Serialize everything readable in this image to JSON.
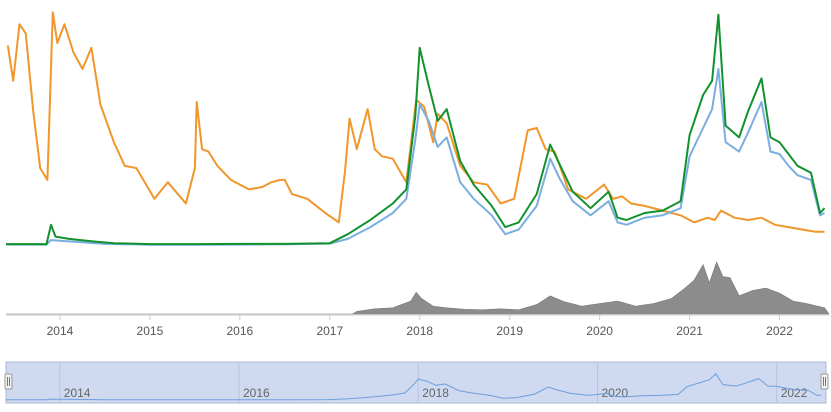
{
  "chart_data": {
    "type": "line",
    "title": "",
    "xlabel": "",
    "ylabel": "",
    "x_range": [
      2013.4,
      2022.55
    ],
    "x_ticks": [
      2014,
      2015,
      2016,
      2017,
      2018,
      2019,
      2020,
      2021,
      2022
    ],
    "x_tick_labels": [
      "2014",
      "2015",
      "2016",
      "2017",
      "2018",
      "2019",
      "2020",
      "2021",
      "2022"
    ],
    "y_range": [
      0,
      100
    ],
    "y_axis_visible": false,
    "grid": false,
    "legend": "none",
    "colors": {
      "orange": "#f0962a",
      "green": "#12922e",
      "blue": "#7aaee0",
      "volume": "#8c8c8c",
      "navigator_fill": "#cfd9f0",
      "navigator_border": "#a9b9d6",
      "navigator_line": "#6f9fdc",
      "axis": "#cccccc",
      "tick_text": "#555555",
      "nav_text": "#666666"
    },
    "series": [
      {
        "color_key": "orange",
        "points": [
          [
            2013.42,
            85
          ],
          [
            2013.48,
            70
          ],
          [
            2013.55,
            94
          ],
          [
            2013.62,
            90
          ],
          [
            2013.7,
            58
          ],
          [
            2013.78,
            33
          ],
          [
            2013.86,
            28
          ],
          [
            2013.92,
            99
          ],
          [
            2013.97,
            86
          ],
          [
            2014.05,
            94
          ],
          [
            2014.15,
            82
          ],
          [
            2014.25,
            75
          ],
          [
            2014.35,
            84
          ],
          [
            2014.45,
            60
          ],
          [
            2014.6,
            44
          ],
          [
            2014.72,
            34
          ],
          [
            2014.85,
            33
          ],
          [
            2015.05,
            20
          ],
          [
            2015.2,
            27
          ],
          [
            2015.4,
            18
          ],
          [
            2015.5,
            33
          ],
          [
            2015.52,
            61
          ],
          [
            2015.58,
            41
          ],
          [
            2015.65,
            40
          ],
          [
            2015.75,
            34
          ],
          [
            2015.9,
            28
          ],
          [
            2016.1,
            24
          ],
          [
            2016.25,
            25
          ],
          [
            2016.35,
            27
          ],
          [
            2016.45,
            28
          ],
          [
            2016.5,
            28
          ],
          [
            2016.58,
            22
          ],
          [
            2016.75,
            20
          ],
          [
            2016.95,
            14
          ],
          [
            2017.1,
            10
          ],
          [
            2017.17,
            32
          ],
          [
            2017.22,
            54
          ],
          [
            2017.3,
            41
          ],
          [
            2017.42,
            58
          ],
          [
            2017.5,
            41
          ],
          [
            2017.58,
            38
          ],
          [
            2017.7,
            37
          ],
          [
            2017.85,
            27
          ],
          [
            2017.96,
            62
          ],
          [
            2018.05,
            59
          ],
          [
            2018.15,
            44
          ],
          [
            2018.2,
            56
          ],
          [
            2018.3,
            52
          ],
          [
            2018.45,
            34
          ],
          [
            2018.6,
            27
          ],
          [
            2018.75,
            26
          ],
          [
            2018.9,
            18
          ],
          [
            2019.05,
            20
          ],
          [
            2019.2,
            49
          ],
          [
            2019.3,
            50
          ],
          [
            2019.4,
            41
          ],
          [
            2019.5,
            40
          ],
          [
            2019.65,
            24
          ],
          [
            2019.85,
            20
          ],
          [
            2020.05,
            26
          ],
          [
            2020.15,
            20
          ],
          [
            2020.25,
            21
          ],
          [
            2020.35,
            18
          ],
          [
            2020.5,
            17
          ],
          [
            2020.7,
            15
          ],
          [
            2020.9,
            13
          ],
          [
            2021.05,
            10
          ],
          [
            2021.2,
            12
          ],
          [
            2021.28,
            11
          ],
          [
            2021.35,
            15
          ],
          [
            2021.5,
            12
          ],
          [
            2021.65,
            11
          ],
          [
            2021.8,
            12
          ],
          [
            2021.95,
            9
          ],
          [
            2022.1,
            8
          ],
          [
            2022.25,
            7
          ],
          [
            2022.4,
            6
          ],
          [
            2022.5,
            6
          ]
        ]
      },
      {
        "color_key": "blue",
        "points": [
          [
            2013.4,
            0.6
          ],
          [
            2013.85,
            0.6
          ],
          [
            2013.9,
            2.5
          ],
          [
            2014.0,
            2.2
          ],
          [
            2014.2,
            1.7
          ],
          [
            2014.5,
            0.9
          ],
          [
            2014.8,
            0.7
          ],
          [
            2015.0,
            0.5
          ],
          [
            2015.5,
            0.5
          ],
          [
            2016.0,
            0.6
          ],
          [
            2016.5,
            0.7
          ],
          [
            2017.0,
            1.0
          ],
          [
            2017.2,
            3
          ],
          [
            2017.45,
            8
          ],
          [
            2017.7,
            14
          ],
          [
            2017.85,
            20
          ],
          [
            2017.95,
            45
          ],
          [
            2018.0,
            60
          ],
          [
            2018.1,
            53
          ],
          [
            2018.2,
            42
          ],
          [
            2018.3,
            46
          ],
          [
            2018.45,
            27
          ],
          [
            2018.6,
            20
          ],
          [
            2018.8,
            13
          ],
          [
            2018.95,
            5
          ],
          [
            2019.1,
            7
          ],
          [
            2019.3,
            17
          ],
          [
            2019.45,
            37
          ],
          [
            2019.55,
            29
          ],
          [
            2019.7,
            19
          ],
          [
            2019.9,
            13
          ],
          [
            2020.1,
            19
          ],
          [
            2020.2,
            10
          ],
          [
            2020.3,
            9
          ],
          [
            2020.5,
            12
          ],
          [
            2020.7,
            13
          ],
          [
            2020.9,
            16
          ],
          [
            2021.0,
            38
          ],
          [
            2021.15,
            50
          ],
          [
            2021.25,
            58
          ],
          [
            2021.32,
            75
          ],
          [
            2021.4,
            44
          ],
          [
            2021.55,
            40
          ],
          [
            2021.65,
            48
          ],
          [
            2021.8,
            61
          ],
          [
            2021.9,
            40
          ],
          [
            2022.0,
            39
          ],
          [
            2022.1,
            34
          ],
          [
            2022.2,
            30
          ],
          [
            2022.35,
            28
          ],
          [
            2022.45,
            13
          ],
          [
            2022.5,
            14
          ]
        ]
      },
      {
        "color_key": "green",
        "points": [
          [
            2013.4,
            0.8
          ],
          [
            2013.85,
            0.8
          ],
          [
            2013.9,
            9
          ],
          [
            2013.95,
            4
          ],
          [
            2014.1,
            3.0
          ],
          [
            2014.35,
            2.0
          ],
          [
            2014.6,
            1.2
          ],
          [
            2014.8,
            1.0
          ],
          [
            2015.0,
            0.8
          ],
          [
            2015.5,
            0.8
          ],
          [
            2016.0,
            0.9
          ],
          [
            2016.5,
            0.9
          ],
          [
            2017.0,
            1.2
          ],
          [
            2017.2,
            5
          ],
          [
            2017.45,
            11
          ],
          [
            2017.7,
            18
          ],
          [
            2017.85,
            24
          ],
          [
            2017.95,
            55
          ],
          [
            2018.0,
            84
          ],
          [
            2018.1,
            68
          ],
          [
            2018.2,
            53
          ],
          [
            2018.3,
            58
          ],
          [
            2018.45,
            36
          ],
          [
            2018.6,
            26
          ],
          [
            2018.8,
            17
          ],
          [
            2018.95,
            8
          ],
          [
            2019.1,
            10
          ],
          [
            2019.3,
            22
          ],
          [
            2019.45,
            43
          ],
          [
            2019.55,
            35
          ],
          [
            2019.7,
            23
          ],
          [
            2019.9,
            16
          ],
          [
            2020.1,
            23
          ],
          [
            2020.2,
            12
          ],
          [
            2020.3,
            11
          ],
          [
            2020.5,
            14
          ],
          [
            2020.7,
            15
          ],
          [
            2020.9,
            19
          ],
          [
            2021.0,
            47
          ],
          [
            2021.15,
            64
          ],
          [
            2021.25,
            70
          ],
          [
            2021.32,
            98
          ],
          [
            2021.4,
            51
          ],
          [
            2021.55,
            46
          ],
          [
            2021.65,
            57
          ],
          [
            2021.8,
            71
          ],
          [
            2021.9,
            46
          ],
          [
            2022.0,
            44
          ],
          [
            2022.1,
            39
          ],
          [
            2022.2,
            34
          ],
          [
            2022.35,
            31
          ],
          [
            2022.45,
            14
          ],
          [
            2022.5,
            16
          ]
        ]
      }
    ],
    "volume": {
      "color_key": "volume",
      "points": [
        [
          2013.4,
          0
        ],
        [
          2017.25,
          0
        ],
        [
          2017.3,
          5
        ],
        [
          2017.5,
          10
        ],
        [
          2017.7,
          12
        ],
        [
          2017.9,
          25
        ],
        [
          2017.96,
          42
        ],
        [
          2018.02,
          30
        ],
        [
          2018.15,
          15
        ],
        [
          2018.3,
          12
        ],
        [
          2018.5,
          9
        ],
        [
          2018.7,
          8
        ],
        [
          2018.9,
          10
        ],
        [
          2019.1,
          8
        ],
        [
          2019.3,
          18
        ],
        [
          2019.45,
          35
        ],
        [
          2019.6,
          24
        ],
        [
          2019.8,
          15
        ],
        [
          2020.0,
          20
        ],
        [
          2020.2,
          25
        ],
        [
          2020.4,
          15
        ],
        [
          2020.6,
          20
        ],
        [
          2020.8,
          30
        ],
        [
          2020.95,
          50
        ],
        [
          2021.05,
          65
        ],
        [
          2021.15,
          95
        ],
        [
          2021.22,
          60
        ],
        [
          2021.3,
          100
        ],
        [
          2021.37,
          72
        ],
        [
          2021.45,
          70
        ],
        [
          2021.55,
          35
        ],
        [
          2021.7,
          45
        ],
        [
          2021.85,
          50
        ],
        [
          2022.0,
          40
        ],
        [
          2022.15,
          25
        ],
        [
          2022.3,
          20
        ],
        [
          2022.5,
          12
        ],
        [
          2022.55,
          0
        ]
      ]
    },
    "navigator": {
      "tick_labels": [
        "2014",
        "2016",
        "2018",
        "2020",
        "2022"
      ],
      "tick_values": [
        2014,
        2016,
        2018,
        2020,
        2022
      ]
    }
  }
}
